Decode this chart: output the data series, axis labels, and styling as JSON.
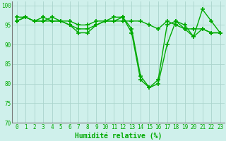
{
  "xlabel": "Humidité relative (%)",
  "background_color": "#cff0eb",
  "grid_color": "#aad4cc",
  "line_color": "#00aa00",
  "marker": "+",
  "marker_size": 4,
  "marker_lw": 1.2,
  "line_width": 1.0,
  "xlim": [
    -0.5,
    23.5
  ],
  "ylim": [
    70,
    101
  ],
  "yticks": [
    70,
    75,
    80,
    85,
    90,
    95,
    100
  ],
  "xticks": [
    0,
    1,
    2,
    3,
    4,
    5,
    6,
    7,
    8,
    9,
    10,
    11,
    12,
    13,
    14,
    15,
    16,
    17,
    18,
    19,
    20,
    21,
    22,
    23
  ],
  "xlabel_fontsize": 7,
  "tick_fontsize": 5.5,
  "series": [
    [
      96,
      97,
      96,
      96,
      97,
      96,
      95,
      93,
      93,
      95,
      96,
      97,
      97,
      93,
      81,
      79,
      80,
      90,
      96,
      95,
      92,
      94,
      93,
      93
    ],
    [
      96,
      97,
      96,
      97,
      96,
      96,
      95,
      94,
      94,
      95,
      96,
      96,
      97,
      94,
      82,
      79,
      81,
      95,
      96,
      94,
      92,
      99,
      96,
      93
    ],
    [
      97,
      97,
      96,
      96,
      96,
      96,
      96,
      95,
      95,
      96,
      96,
      96,
      96,
      96,
      96,
      95,
      94,
      96,
      95,
      94,
      94,
      94,
      93,
      93
    ]
  ]
}
